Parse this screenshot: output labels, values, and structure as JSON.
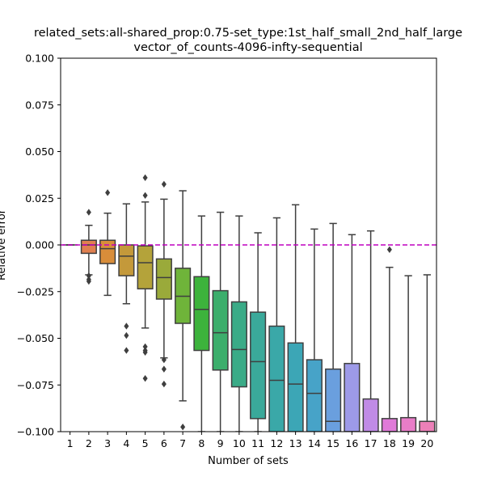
{
  "chart_data": {
    "type": "box",
    "title_lines": [
      "related_sets:all-shared_prop:0.75-set_type:1st_half_small_2nd_half_large",
      "vector_of_counts-4096-infty-sequential"
    ],
    "xlabel": "Number of sets",
    "ylabel": "Relative error",
    "ylim": [
      -0.1,
      0.1
    ],
    "yticks": [
      -0.1,
      -0.075,
      -0.05,
      -0.025,
      0.0,
      0.025,
      0.05,
      0.075,
      0.1
    ],
    "ytick_labels": [
      "−0.100",
      "−0.075",
      "−0.050",
      "−0.025",
      "0.000",
      "0.025",
      "0.050",
      "0.075",
      "0.100"
    ],
    "reference_line": {
      "y": 0.0,
      "color": "#bf00bf",
      "style": "dashed"
    },
    "categories": [
      "1",
      "2",
      "3",
      "4",
      "5",
      "6",
      "7",
      "8",
      "9",
      "10",
      "11",
      "12",
      "13",
      "14",
      "15",
      "16",
      "17",
      "18",
      "19",
      "20"
    ],
    "boxes": [
      {
        "x": "1",
        "color": "#e07070",
        "whislo": 0.0,
        "q1": 0.0,
        "med": 0.0,
        "q3": 0.0,
        "whishi": 0.0,
        "fliers": []
      },
      {
        "x": "2",
        "color": "#e08050",
        "whislo": -0.016,
        "q1": -0.0045,
        "med": 0.0,
        "q3": 0.0025,
        "whishi": 0.0105,
        "fliers": [
          0.0175,
          -0.0165,
          -0.0185,
          -0.0195
        ]
      },
      {
        "x": "3",
        "color": "#d88d3a",
        "whislo": -0.027,
        "q1": -0.01,
        "med": -0.002,
        "q3": 0.0025,
        "whishi": 0.017,
        "fliers": [
          0.028
        ]
      },
      {
        "x": "4",
        "color": "#c4993a",
        "whislo": -0.0315,
        "q1": -0.0165,
        "med": -0.006,
        "q3": 0.0,
        "whishi": 0.022,
        "fliers": [
          -0.0435,
          -0.0485,
          -0.0565
        ]
      },
      {
        "x": "5",
        "color": "#b4a33a",
        "whislo": -0.0445,
        "q1": -0.0235,
        "med": -0.0095,
        "q3": -0.0005,
        "whishi": 0.023,
        "fliers": [
          0.036,
          0.0265,
          -0.0545,
          -0.0565,
          -0.0575,
          -0.0715
        ]
      },
      {
        "x": "6",
        "color": "#9aaa3a",
        "whislo": -0.0605,
        "q1": -0.029,
        "med": -0.0175,
        "q3": -0.0075,
        "whishi": 0.0245,
        "fliers": [
          0.0325,
          -0.0615,
          -0.0665,
          -0.0745
        ]
      },
      {
        "x": "7",
        "color": "#6fb43a",
        "whislo": -0.0835,
        "q1": -0.042,
        "med": -0.0275,
        "q3": -0.0125,
        "whishi": 0.029,
        "fliers": [
          -0.0975
        ]
      },
      {
        "x": "8",
        "color": "#3db33c",
        "whislo": -0.1,
        "q1": -0.0565,
        "med": -0.0345,
        "q3": -0.017,
        "whishi": 0.0155,
        "fliers": []
      },
      {
        "x": "9",
        "color": "#3cae6c",
        "whislo": -0.1,
        "q1": -0.067,
        "med": -0.047,
        "q3": -0.0245,
        "whishi": 0.0175,
        "fliers": []
      },
      {
        "x": "10",
        "color": "#3aab87",
        "whislo": -0.1,
        "q1": -0.076,
        "med": -0.056,
        "q3": -0.0305,
        "whishi": 0.0155,
        "fliers": []
      },
      {
        "x": "11",
        "color": "#3aa99a",
        "whislo": -0.1,
        "q1": -0.093,
        "med": -0.0625,
        "q3": -0.036,
        "whishi": 0.0065,
        "fliers": []
      },
      {
        "x": "12",
        "color": "#3aa8a8",
        "whislo": -0.1,
        "q1": -0.1,
        "med": -0.0725,
        "q3": -0.0435,
        "whishi": 0.0145,
        "fliers": []
      },
      {
        "x": "13",
        "color": "#3ca6b6",
        "whislo": -0.1,
        "q1": -0.1,
        "med": -0.0745,
        "q3": -0.0525,
        "whishi": 0.0215,
        "fliers": []
      },
      {
        "x": "14",
        "color": "#47a3c8",
        "whislo": -0.1,
        "q1": -0.1,
        "med": -0.0795,
        "q3": -0.0615,
        "whishi": 0.0085,
        "fliers": []
      },
      {
        "x": "15",
        "color": "#6a9fde",
        "whislo": -0.1,
        "q1": -0.1,
        "med": -0.0945,
        "q3": -0.0665,
        "whishi": 0.0115,
        "fliers": []
      },
      {
        "x": "16",
        "color": "#9d9ae8",
        "whislo": -0.1,
        "q1": -0.1,
        "med": -0.1,
        "q3": -0.0635,
        "whishi": 0.0055,
        "fliers": []
      },
      {
        "x": "17",
        "color": "#c08be6",
        "whislo": -0.1,
        "q1": -0.1,
        "med": -0.1,
        "q3": -0.0825,
        "whishi": 0.0075,
        "fliers": []
      },
      {
        "x": "18",
        "color": "#e07ad8",
        "whislo": -0.1,
        "q1": -0.1,
        "med": -0.1,
        "q3": -0.093,
        "whishi": -0.012,
        "fliers": [
          -0.0025
        ]
      },
      {
        "x": "19",
        "color": "#e87dc8",
        "whislo": -0.1,
        "q1": -0.1,
        "med": -0.1,
        "q3": -0.0925,
        "whishi": -0.0165,
        "fliers": []
      },
      {
        "x": "20",
        "color": "#ec80b8",
        "whislo": -0.1,
        "q1": -0.1,
        "med": -0.1,
        "q3": -0.0945,
        "whishi": -0.016,
        "fliers": []
      }
    ]
  }
}
